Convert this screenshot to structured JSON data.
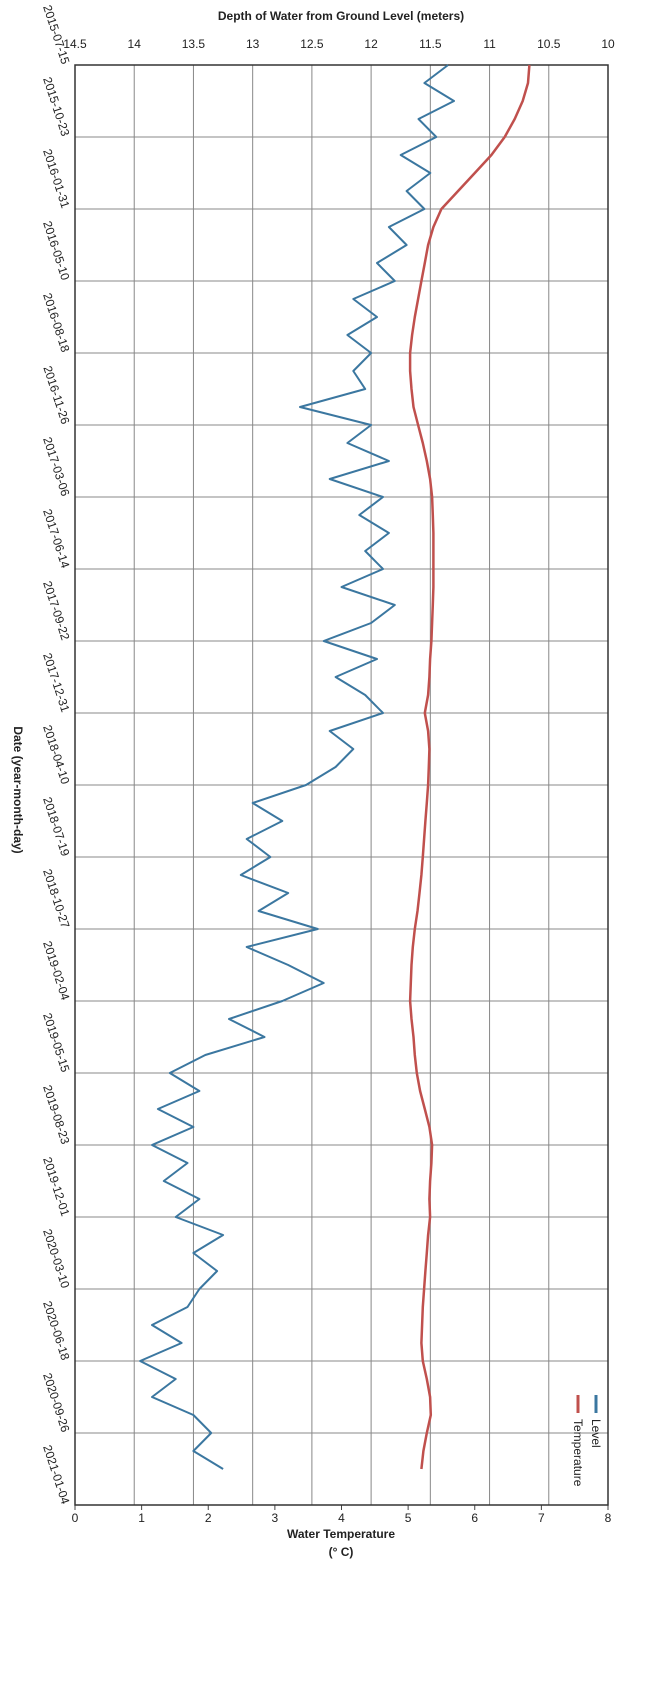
{
  "chart_data": {
    "type": "line",
    "title": "Depth of Water from Ground Level (meters)",
    "x_label": "Date (year-month-day)",
    "y2_label": [
      "Water Temperature",
      "(° C)"
    ],
    "x": [
      "2015-07-15",
      "2015-08-09",
      "2015-09-03",
      "2015-09-28",
      "2015-10-23",
      "2015-11-17",
      "2015-12-12",
      "2016-01-06",
      "2016-01-31",
      "2016-02-25",
      "2016-03-21",
      "2016-04-15",
      "2016-05-10",
      "2016-06-04",
      "2016-06-29",
      "2016-07-24",
      "2016-08-18",
      "2016-09-12",
      "2016-10-07",
      "2016-11-01",
      "2016-11-26",
      "2016-12-21",
      "2017-01-15",
      "2017-02-09",
      "2017-03-06",
      "2017-03-31",
      "2017-04-25",
      "2017-05-20",
      "2017-06-14",
      "2017-07-09",
      "2017-08-03",
      "2017-08-28",
      "2017-09-22",
      "2017-10-17",
      "2017-11-11",
      "2017-12-06",
      "2017-12-31",
      "2018-01-25",
      "2018-02-19",
      "2018-03-16",
      "2018-04-10",
      "2018-05-05",
      "2018-05-30",
      "2018-06-24",
      "2018-07-19",
      "2018-08-13",
      "2018-09-07",
      "2018-10-02",
      "2018-10-27",
      "2018-11-21",
      "2018-12-16",
      "2019-01-10",
      "2019-02-04",
      "2019-03-01",
      "2019-03-26",
      "2019-04-20",
      "2019-05-15",
      "2019-06-09",
      "2019-07-04",
      "2019-07-29",
      "2019-08-23",
      "2019-09-17",
      "2019-10-12",
      "2019-11-06",
      "2019-12-01",
      "2019-12-26",
      "2020-01-20",
      "2020-02-14",
      "2020-03-10",
      "2020-04-04",
      "2020-04-29",
      "2020-05-24",
      "2020-06-18",
      "2020-07-13",
      "2020-08-07",
      "2020-09-01",
      "2020-09-26",
      "2020-10-21",
      "2020-11-15"
    ],
    "series": [
      {
        "name": "Level",
        "color": "#3b77a0",
        "values": [
          11.35,
          11.55,
          11.3,
          11.6,
          11.45,
          11.75,
          11.5,
          11.7,
          11.55,
          11.85,
          11.7,
          11.95,
          11.8,
          12.15,
          11.95,
          12.2,
          12.0,
          12.15,
          12.05,
          12.6,
          12.0,
          12.2,
          11.85,
          12.35,
          11.9,
          12.1,
          11.85,
          12.05,
          11.9,
          12.25,
          11.8,
          12.0,
          12.4,
          11.95,
          12.3,
          12.05,
          11.9,
          12.35,
          12.15,
          12.3,
          12.55,
          13.0,
          12.75,
          13.05,
          12.85,
          13.1,
          12.7,
          12.95,
          12.45,
          13.05,
          12.7,
          12.4,
          12.75,
          13.2,
          12.9,
          13.4,
          13.7,
          13.45,
          13.8,
          13.5,
          13.85,
          13.55,
          13.75,
          13.45,
          13.65,
          13.25,
          13.5,
          13.3,
          13.45,
          13.55,
          13.85,
          13.6,
          13.95,
          13.65,
          13.85,
          13.5,
          13.35,
          13.5,
          13.25
        ]
      },
      {
        "name": "Temperature",
        "color": "#c0504d",
        "axis": "y2",
        "values": [
          6.82,
          6.8,
          6.72,
          6.6,
          6.45,
          6.25,
          6.0,
          5.75,
          5.5,
          5.38,
          5.3,
          5.25,
          5.2,
          5.15,
          5.1,
          5.06,
          5.03,
          5.03,
          5.05,
          5.08,
          5.15,
          5.22,
          5.28,
          5.33,
          5.36,
          5.37,
          5.38,
          5.38,
          5.38,
          5.38,
          5.37,
          5.36,
          5.35,
          5.33,
          5.32,
          5.3,
          5.25,
          5.3,
          5.32,
          5.31,
          5.3,
          5.28,
          5.26,
          5.24,
          5.22,
          5.2,
          5.17,
          5.14,
          5.1,
          5.07,
          5.05,
          5.04,
          5.03,
          5.05,
          5.08,
          5.1,
          5.13,
          5.18,
          5.25,
          5.32,
          5.36,
          5.35,
          5.33,
          5.32,
          5.33,
          5.3,
          5.28,
          5.26,
          5.24,
          5.22,
          5.21,
          5.2,
          5.22,
          5.28,
          5.33,
          5.34,
          5.28,
          5.23,
          5.2
        ]
      }
    ],
    "xlim": [
      "2015-07-15",
      "2021-01-04"
    ],
    "xticks": [
      "2015-07-15",
      "2015-10-23",
      "2016-01-31",
      "2016-05-10",
      "2016-08-18",
      "2016-11-26",
      "2017-03-06",
      "2017-06-14",
      "2017-09-22",
      "2017-12-31",
      "2018-04-10",
      "2018-07-19",
      "2018-10-27",
      "2019-02-04",
      "2019-05-15",
      "2019-08-23",
      "2019-12-01",
      "2020-03-10",
      "2020-06-18",
      "2020-09-26",
      "2021-01-04"
    ],
    "ylim": [
      14.5,
      10
    ],
    "yticks": [
      14.5,
      14,
      13.5,
      13,
      12.5,
      12,
      11.5,
      11,
      10.5,
      10
    ],
    "y2lim": [
      0,
      8
    ],
    "y2ticks": [
      0,
      1,
      2,
      3,
      4,
      5,
      6,
      7,
      8
    ],
    "grid": true,
    "legend": "lower right"
  }
}
